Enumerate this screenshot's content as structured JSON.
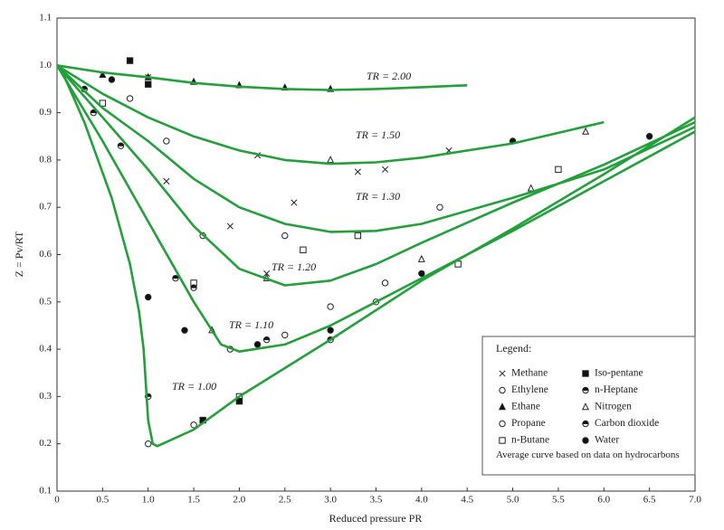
{
  "chart_data": {
    "type": "line",
    "x_label": "Reduced pressure PR",
    "y_label": "Z = Pv/RT",
    "xlim": [
      0,
      7
    ],
    "ylim": [
      0.1,
      1.1
    ],
    "xticks": [
      0,
      0.5,
      {
        "value": 1,
        "label": "1.0"
      },
      1.5,
      {
        "value": 2,
        "label": "2.0"
      },
      2.5,
      {
        "value": 3,
        "label": "3.0"
      },
      3.5,
      {
        "value": 4,
        "label": "4.0"
      },
      4.5,
      {
        "value": 5,
        "label": "5.0"
      },
      5.5,
      {
        "value": 6,
        "label": "6.0"
      },
      6.5,
      {
        "value": 7,
        "label": "7.0"
      }
    ],
    "yticks": [
      0.1,
      0.2,
      0.3,
      0.4,
      0.5,
      0.6,
      0.7,
      0.8,
      0.9,
      {
        "value": 1,
        "label": "1.0"
      },
      1.1
    ],
    "series": [
      {
        "name": "TR = 2.00",
        "color": "#22a03a",
        "x": [
          0,
          0.5,
          1,
          1.5,
          2,
          2.5,
          3,
          3.5,
          4,
          4.5
        ],
        "values": [
          1.0,
          0.985,
          0.975,
          0.963,
          0.955,
          0.95,
          0.948,
          0.95,
          0.954,
          0.958
        ]
      },
      {
        "name": "TR = 1.50",
        "color": "#22a03a",
        "x": [
          0,
          0.5,
          1,
          1.5,
          2,
          2.5,
          3,
          3.5,
          4,
          5,
          6
        ],
        "values": [
          1.0,
          0.94,
          0.89,
          0.85,
          0.82,
          0.8,
          0.792,
          0.795,
          0.805,
          0.835,
          0.88
        ]
      },
      {
        "name": "TR = 1.30",
        "color": "#22a03a",
        "x": [
          0,
          0.5,
          1,
          1.5,
          2,
          2.5,
          3,
          3.5,
          4,
          5,
          6,
          7
        ],
        "values": [
          1.0,
          0.91,
          0.84,
          0.76,
          0.7,
          0.665,
          0.648,
          0.65,
          0.665,
          0.72,
          0.78,
          0.87
        ]
      },
      {
        "name": "TR = 1.20",
        "color": "#22a03a",
        "x": [
          0,
          0.5,
          1,
          1.5,
          2,
          2.5,
          3,
          3.5,
          4,
          5,
          6,
          7
        ],
        "values": [
          1.0,
          0.89,
          0.78,
          0.66,
          0.57,
          0.535,
          0.545,
          0.58,
          0.625,
          0.71,
          0.79,
          0.88
        ]
      },
      {
        "name": "TR = 1.10",
        "color": "#22a03a",
        "x": [
          0,
          0.5,
          1,
          1.5,
          1.8,
          2,
          2.5,
          3,
          4,
          5,
          6,
          7
        ],
        "values": [
          1.0,
          0.84,
          0.67,
          0.5,
          0.41,
          0.395,
          0.41,
          0.45,
          0.55,
          0.65,
          0.755,
          0.86
        ]
      },
      {
        "name": "TR = 1.00",
        "color": "#22a03a",
        "x": [
          0.05,
          0.3,
          0.6,
          0.8,
          0.9,
          0.95,
          1.0,
          1.05,
          1.1,
          1.5,
          2,
          3,
          4,
          5,
          6,
          7
        ],
        "values": [
          0.99,
          0.88,
          0.72,
          0.58,
          0.48,
          0.4,
          0.25,
          0.2,
          0.195,
          0.23,
          0.3,
          0.42,
          0.545,
          0.655,
          0.77,
          0.89
        ]
      }
    ],
    "points": [
      {
        "name": "Methane",
        "marker": "x",
        "x": [
          1,
          1.2,
          1.9,
          2.2,
          2.3,
          2.6,
          3.3,
          3.6,
          4.3
        ],
        "values": [
          0.975,
          0.755,
          0.66,
          0.81,
          0.56,
          0.71,
          0.775,
          0.78,
          0.82
        ]
      },
      {
        "name": "Ethylene",
        "marker": "o",
        "x": [
          0.8,
          1.2,
          1.6,
          2.5,
          3.6,
          4.2
        ],
        "values": [
          0.93,
          0.84,
          0.64,
          0.64,
          0.54,
          0.7
        ]
      },
      {
        "name": "Ethane",
        "marker": "^",
        "x": [
          0.5,
          1,
          1.5,
          2,
          2.5,
          3
        ],
        "values": [
          0.98,
          0.975,
          0.965,
          0.958,
          0.953,
          0.95
        ]
      },
      {
        "name": "Propane",
        "marker": "o",
        "x": [
          1,
          1.5,
          1.9,
          2.5,
          3,
          3.5
        ],
        "values": [
          0.2,
          0.24,
          0.4,
          0.43,
          0.49,
          0.5
        ]
      },
      {
        "name": "n-Butane",
        "marker": "s",
        "x": [
          0.5,
          1.5,
          2,
          2.7,
          3.3,
          4.4,
          5.5
        ],
        "values": [
          0.92,
          0.54,
          0.3,
          0.61,
          0.64,
          0.58,
          0.78
        ]
      },
      {
        "name": "Iso-pentane",
        "marker": "S",
        "x": [
          0.8,
          1,
          1.6,
          2
        ],
        "values": [
          1.01,
          0.96,
          0.25,
          0.29
        ]
      },
      {
        "name": "n-Heptane",
        "marker": "h",
        "x": [
          0.3,
          0.7,
          1.5,
          3
        ],
        "values": [
          0.95,
          0.83,
          0.53,
          0.42
        ]
      },
      {
        "name": "Nitrogen",
        "marker": "t",
        "x": [
          1.7,
          2.3,
          3,
          4,
          5.2,
          5.8
        ],
        "values": [
          0.44,
          0.55,
          0.8,
          0.59,
          0.74,
          0.86
        ]
      },
      {
        "name": "Carbon dioxide",
        "marker": "h",
        "x": [
          0.4,
          1,
          1.3,
          2.3
        ],
        "values": [
          0.9,
          0.3,
          0.55,
          0.42
        ]
      },
      {
        "name": "Water",
        "marker": "O",
        "x": [
          0.6,
          1,
          1.4,
          2.2,
          3,
          4,
          5,
          6.5
        ],
        "values": [
          0.97,
          0.51,
          0.44,
          0.41,
          0.44,
          0.56,
          0.84,
          0.85
        ]
      }
    ],
    "legend": {
      "title": "Legend:",
      "note": "Average curve based on data on hydrocarbons"
    }
  }
}
